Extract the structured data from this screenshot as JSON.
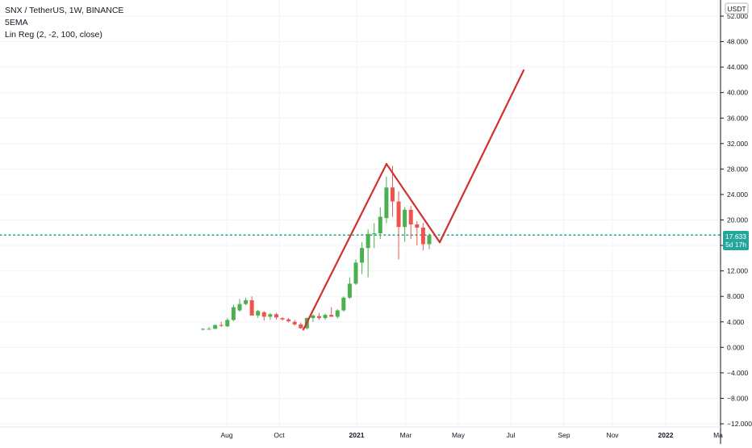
{
  "legend": {
    "symbol_line": "SNX / TetherUS, 1W, BINANCE",
    "ema_line": "5EMA",
    "linreg_line": "Lin Reg (2, -2, 100, close)"
  },
  "price_axis": {
    "currency_label": "USDT",
    "ticks": [
      "52.000",
      "48.000",
      "44.000",
      "40.000",
      "36.000",
      "32.000",
      "28.000",
      "24.000",
      "20.000",
      "16.000",
      "12.000",
      "8.000",
      "4.000",
      "0.000",
      "−4.000",
      "−8.000",
      "−12.000"
    ],
    "tick_values": [
      52,
      48,
      44,
      40,
      36,
      32,
      28,
      24,
      20,
      16,
      12,
      8,
      4,
      0,
      -4,
      -8,
      -12
    ]
  },
  "time_axis": {
    "labels": [
      {
        "text": "Aug",
        "bold": false
      },
      {
        "text": "Oct",
        "bold": false
      },
      {
        "text": "2021",
        "bold": true
      },
      {
        "text": "Mar",
        "bold": false
      },
      {
        "text": "May",
        "bold": false
      },
      {
        "text": "Jul",
        "bold": false
      },
      {
        "text": "Sep",
        "bold": false
      },
      {
        "text": "Nov",
        "bold": false
      },
      {
        "text": "2022",
        "bold": true
      },
      {
        "text": "Ma",
        "bold": false
      }
    ]
  },
  "last_price": {
    "value_label": "17.633",
    "countdown_label": "5d 17h",
    "value": 17.633
  },
  "colors": {
    "up": "#26a69a",
    "up_body": "#4caf50",
    "down": "#ef5350",
    "drawing": "#d32f2f",
    "last_price": "#26a69a",
    "grid": "#f0f3fa"
  },
  "chart_data": {
    "type": "candlestick",
    "symbol": "SNX / TetherUS",
    "interval": "1W",
    "exchange": "BINANCE",
    "y_range": [
      -12,
      52
    ],
    "grid": true,
    "candles": [
      {
        "o": 2.8,
        "h": 3.0,
        "l": 2.7,
        "c": 2.9
      },
      {
        "o": 2.9,
        "h": 3.2,
        "l": 2.8,
        "c": 2.9
      },
      {
        "o": 2.9,
        "h": 3.6,
        "l": 2.9,
        "c": 3.5
      },
      {
        "o": 3.5,
        "h": 4.0,
        "l": 3.2,
        "c": 3.4
      },
      {
        "o": 3.3,
        "h": 4.6,
        "l": 3.2,
        "c": 4.3
      },
      {
        "o": 4.3,
        "h": 6.7,
        "l": 4.1,
        "c": 6.3
      },
      {
        "o": 5.8,
        "h": 7.6,
        "l": 5.6,
        "c": 6.8
      },
      {
        "o": 6.8,
        "h": 7.8,
        "l": 6.6,
        "c": 7.4
      },
      {
        "o": 7.4,
        "h": 8.0,
        "l": 5.2,
        "c": 5.0
      },
      {
        "o": 5.0,
        "h": 5.9,
        "l": 4.6,
        "c": 5.7
      },
      {
        "o": 5.5,
        "h": 5.7,
        "l": 4.2,
        "c": 4.8
      },
      {
        "o": 4.8,
        "h": 5.4,
        "l": 4.3,
        "c": 5.2
      },
      {
        "o": 5.2,
        "h": 5.4,
        "l": 4.4,
        "c": 4.7
      },
      {
        "o": 4.6,
        "h": 4.7,
        "l": 4.2,
        "c": 4.4
      },
      {
        "o": 4.4,
        "h": 4.6,
        "l": 3.9,
        "c": 4.1
      },
      {
        "o": 4.0,
        "h": 4.3,
        "l": 3.4,
        "c": 3.6
      },
      {
        "o": 3.6,
        "h": 3.9,
        "l": 2.9,
        "c": 3.0
      },
      {
        "o": 3.0,
        "h": 4.7,
        "l": 2.8,
        "c": 4.6
      },
      {
        "o": 4.6,
        "h": 5.2,
        "l": 4.0,
        "c": 5.0
      },
      {
        "o": 4.9,
        "h": 5.4,
        "l": 4.3,
        "c": 4.6
      },
      {
        "o": 4.6,
        "h": 5.3,
        "l": 4.3,
        "c": 5.1
      },
      {
        "o": 5.1,
        "h": 6.3,
        "l": 4.8,
        "c": 4.8
      },
      {
        "o": 4.8,
        "h": 6.0,
        "l": 4.5,
        "c": 5.8
      },
      {
        "o": 5.8,
        "h": 8.0,
        "l": 5.6,
        "c": 7.8
      },
      {
        "o": 7.8,
        "h": 11.0,
        "l": 7.6,
        "c": 10.0
      },
      {
        "o": 10.0,
        "h": 13.8,
        "l": 9.8,
        "c": 13.3
      },
      {
        "o": 13.3,
        "h": 16.5,
        "l": 11.5,
        "c": 15.6
      },
      {
        "o": 15.6,
        "h": 18.5,
        "l": 11.0,
        "c": 17.8
      },
      {
        "o": 17.8,
        "h": 19.5,
        "l": 15.6,
        "c": 17.9
      },
      {
        "o": 17.9,
        "h": 22.0,
        "l": 17.0,
        "c": 20.5
      },
      {
        "o": 20.3,
        "h": 26.8,
        "l": 19.5,
        "c": 25.1
      },
      {
        "o": 25.1,
        "h": 28.5,
        "l": 20.5,
        "c": 22.9
      },
      {
        "o": 22.9,
        "h": 24.5,
        "l": 13.8,
        "c": 18.9
      },
      {
        "o": 18.9,
        "h": 22.0,
        "l": 16.6,
        "c": 21.6
      },
      {
        "o": 21.6,
        "h": 22.2,
        "l": 17.0,
        "c": 19.3
      },
      {
        "o": 19.3,
        "h": 19.8,
        "l": 16.0,
        "c": 18.8
      },
      {
        "o": 18.8,
        "h": 19.5,
        "l": 15.2,
        "c": 16.2
      },
      {
        "o": 16.2,
        "h": 17.9,
        "l": 15.4,
        "c": 17.6
      }
    ],
    "drawings": [
      {
        "name": "trend-up-line",
        "points": [
          [
            0,
            2.8
          ],
          [
            1,
            28.8
          ]
        ]
      },
      {
        "name": "trend-down-line",
        "points": [
          [
            1,
            28.8
          ],
          [
            2,
            16.5
          ]
        ]
      },
      {
        "name": "projection-line",
        "points": [
          [
            2,
            16.5
          ],
          [
            3,
            43.5
          ]
        ]
      }
    ]
  }
}
